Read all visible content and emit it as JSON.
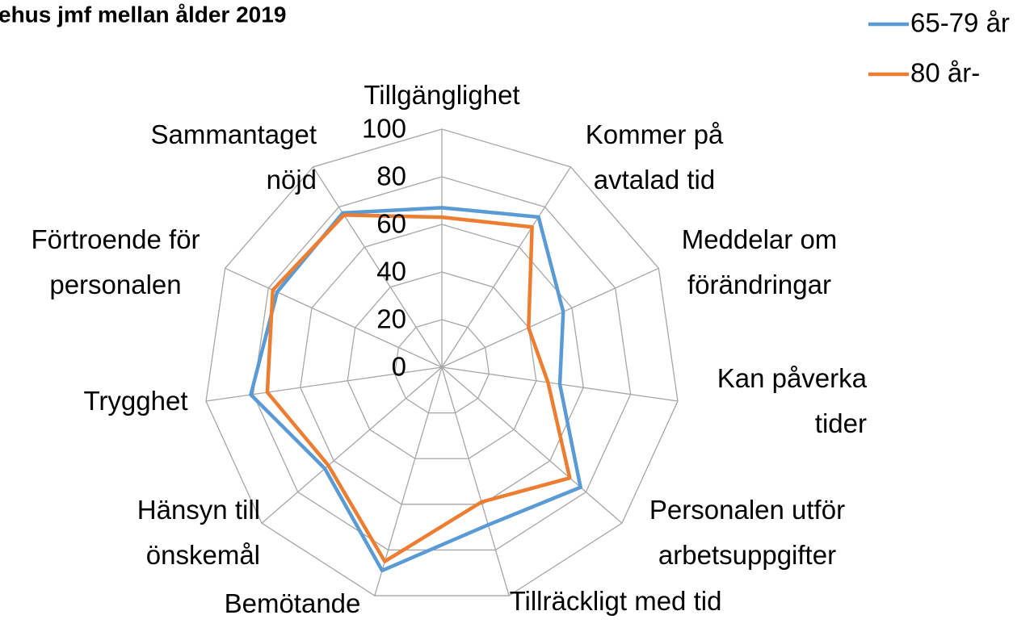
{
  "chart_data": {
    "type": "radar",
    "title": "ehus jmf mellan ålder 2019",
    "categories": [
      "Tillgänglighet",
      "Kommer på avtalad tid",
      "Meddelar om förändringar",
      "Kan påverka tider",
      "Personalen utför arbetsuppgifter",
      "Tillräckligt med tid",
      "Bemötande",
      "Hänsyn till önskemål",
      "Trygghet",
      "Förtroende för personalen",
      "Sammantaget nöjd"
    ],
    "series": [
      {
        "name": "65-79 år",
        "color": "#5b9bd5",
        "values": [
          67,
          75,
          56,
          50,
          77,
          69,
          89,
          65,
          81,
          76,
          77
        ]
      },
      {
        "name": "80 år-",
        "color": "#ed7d31",
        "values": [
          63,
          70,
          40,
          45,
          71,
          59,
          85,
          63,
          74,
          78,
          76
        ]
      }
    ],
    "ylim": [
      0,
      100
    ],
    "yticks": [
      0,
      20,
      40,
      60,
      80,
      100
    ],
    "grid": true,
    "legend": "top-right"
  }
}
